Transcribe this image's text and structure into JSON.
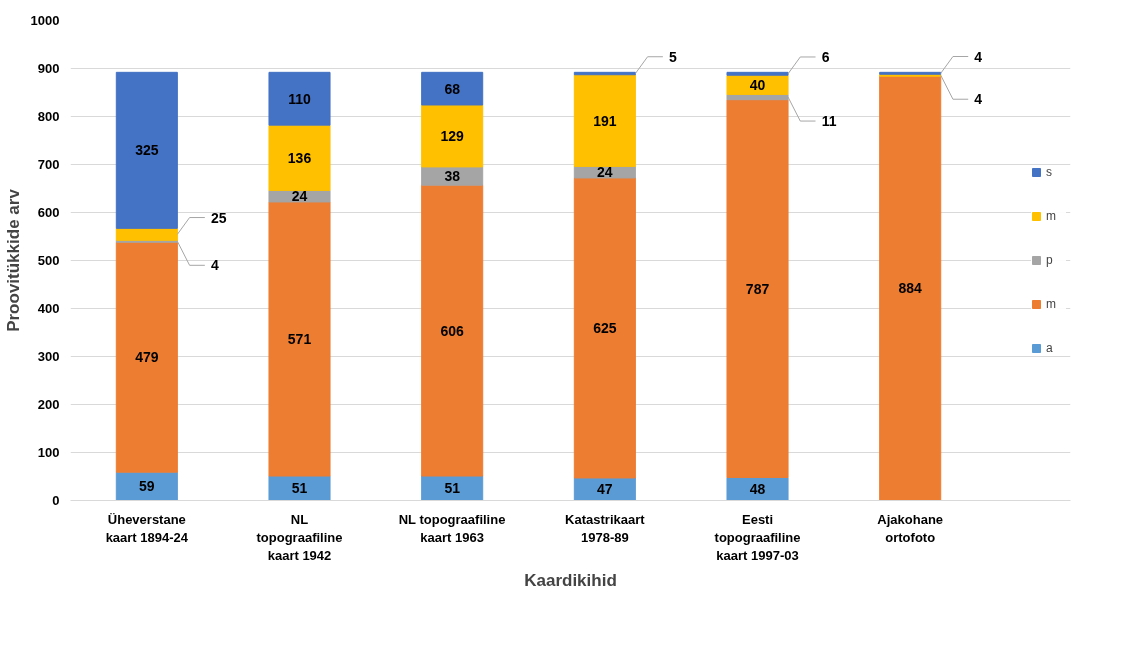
{
  "chart_data": {
    "type": "bar",
    "stacked": true,
    "xlabel": "Kaardikihid",
    "ylabel": "Proovitükkide arv",
    "categories": [
      "Üheverstane\nkaart 1894-24",
      "NL\ntopograafiline\nkaart 1942",
      "NL topograafiline\nkaart 1963",
      "Katastrikaart\n1978-89",
      "Eesti\ntopograafiline\nkaart 1997-03",
      "Ajakohane\nortofoto"
    ],
    "series": [
      {
        "name": "a",
        "color": "#5b9bd5",
        "values": [
          59,
          51,
          51,
          47,
          48,
          null
        ]
      },
      {
        "name": "m",
        "color": "#ed7d31",
        "values": [
          479,
          571,
          606,
          625,
          787,
          884
        ]
      },
      {
        "name": "p",
        "color": "#a5a5a5",
        "values": [
          4,
          24,
          38,
          24,
          11,
          null
        ]
      },
      {
        "name": "m",
        "color": "#ffc000",
        "values": [
          25,
          136,
          129,
          191,
          40,
          4
        ]
      },
      {
        "name": "s",
        "color": "#4472c4",
        "values": [
          325,
          110,
          68,
          5,
          6,
          4
        ]
      }
    ],
    "ylim": [
      0,
      1000
    ],
    "yticks": [
      0,
      100,
      200,
      300,
      400,
      500,
      600,
      700,
      800,
      900,
      1000
    ],
    "grid": "y",
    "legend": "right",
    "data_labels": true
  }
}
